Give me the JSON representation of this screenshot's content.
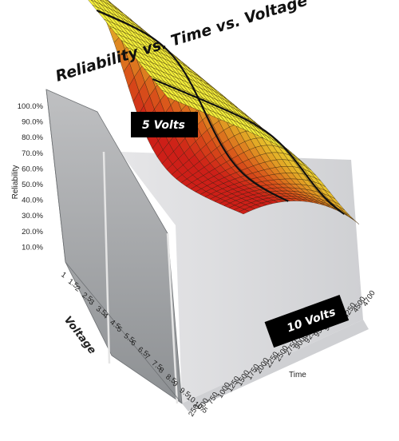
{
  "chart_data": {
    "type": "surface",
    "title": "Reliability vs. Time vs. Voltage",
    "zlabel": "Reliability",
    "xlabel": "Voltage",
    "ylabel": "Time",
    "z_ticks": [
      "100.0%",
      "90.0%",
      "80.0%",
      "70.0%",
      "60.0%",
      "50.0%",
      "40.0%",
      "30.0%",
      "20.0%",
      "10.0%"
    ],
    "voltage_ticks": [
      "1",
      "1.5",
      "2",
      "2.5",
      "3",
      "3.5",
      "4",
      "4.5",
      "5",
      "5.5",
      "6",
      "6.5",
      "7",
      "7.5",
      "8",
      "8.5",
      "9",
      "9.5",
      "10",
      "10.5"
    ],
    "time_ticks": [
      "250",
      "500",
      "750",
      "1000",
      "1250",
      "1500",
      "1750",
      "2000",
      "2250",
      "2500",
      "2750",
      "9000",
      "9250",
      "9500",
      "9750",
      "4000",
      "4250",
      "4500",
      "4700"
    ],
    "series": [
      {
        "name": "5 Volts",
        "voltage": 5,
        "reliability_at_start": 1.0,
        "reliability_at_end": 0.62
      },
      {
        "name": "10 Volts",
        "voltage": 10,
        "reliability_at_start": 1.0,
        "reliability_at_end": 0.02
      }
    ],
    "zlim": [
      0,
      1
    ],
    "colormap": [
      "#f2ee3a",
      "#e2ab26",
      "#d9531a",
      "#cd1f18"
    ],
    "grid": true
  }
}
